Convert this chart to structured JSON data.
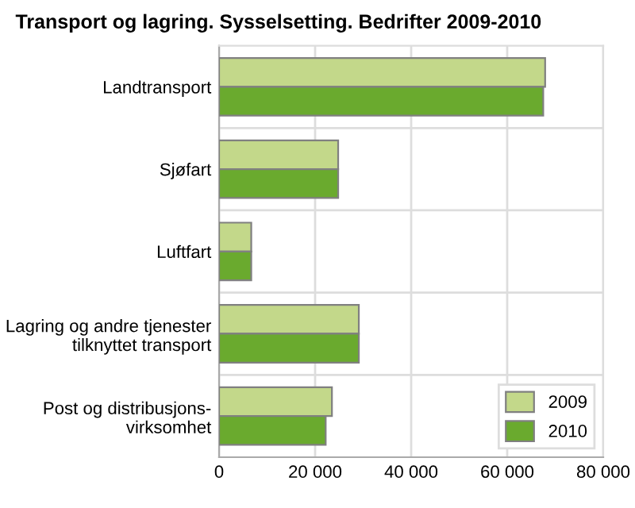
{
  "chart_data": {
    "type": "bar",
    "orientation": "horizontal",
    "title": "Transport og lagring. Sysselsetting. Bedrifter 2009-2010",
    "categories": [
      "Landtransport",
      "Sjøfart",
      "Luftfart",
      "Lagring og andre tjenester\ntilknyttet transport",
      "Post og distribusjons-\nvirksomhet"
    ],
    "series": [
      {
        "name": "2009",
        "color": "#c3d88a",
        "values": [
          67900,
          24800,
          6700,
          29100,
          23500
        ]
      },
      {
        "name": "2010",
        "color": "#6aaa2e",
        "values": [
          67500,
          24800,
          6700,
          29100,
          22200
        ]
      }
    ],
    "xlim": [
      0,
      80000
    ],
    "xticks": [
      0,
      {
        "value": 20000,
        "label": "20 000"
      },
      {
        "value": 40000,
        "label": "40 000"
      },
      {
        "value": 60000,
        "label": "60 000"
      },
      {
        "value": 80000,
        "label": "80 000"
      }
    ],
    "grid": true,
    "legend": "bottom right"
  }
}
